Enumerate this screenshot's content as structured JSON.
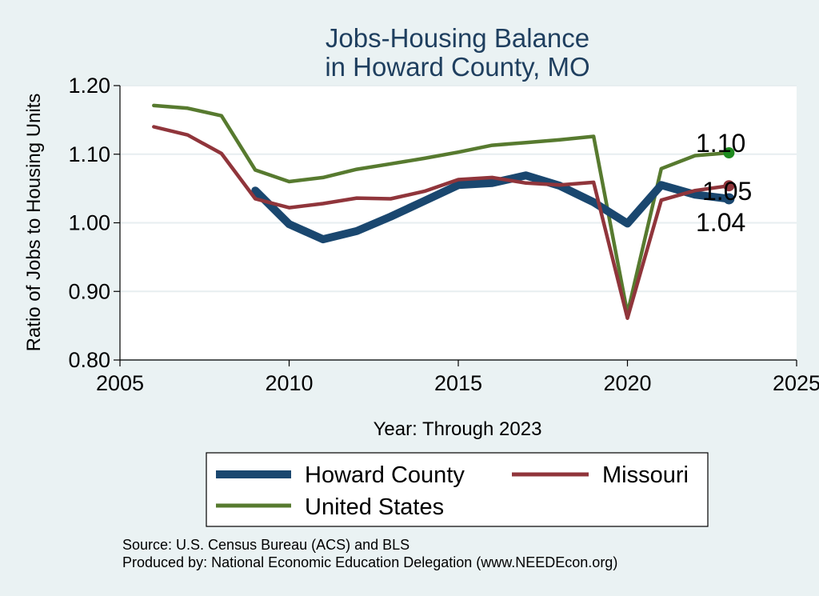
{
  "chart_data": {
    "type": "line",
    "title": [
      "Jobs-Housing Balance",
      "in Howard County, MO"
    ],
    "xlabel": "Year: Through 2023",
    "ylabel": "Ratio of Jobs to Housing Units",
    "xlim": [
      2005,
      2025
    ],
    "ylim": [
      0.8,
      1.2
    ],
    "x_ticks": [
      2005,
      2010,
      2015,
      2020,
      2025
    ],
    "y_ticks": [
      0.8,
      0.9,
      1.0,
      1.1,
      1.2
    ],
    "y_tick_labels": [
      "0.80",
      "0.90",
      "1.00",
      "1.10",
      "1.20"
    ],
    "grid": true,
    "legend_position": "bottom",
    "series": [
      {
        "name": "United States",
        "color": "#577a2f",
        "x": [
          2006,
          2007,
          2008,
          2009,
          2010,
          2011,
          2012,
          2013,
          2014,
          2015,
          2016,
          2017,
          2018,
          2019,
          2020,
          2021,
          2022,
          2023
        ],
        "values": [
          1.171,
          1.167,
          1.156,
          1.077,
          1.06,
          1.066,
          1.078,
          1.086,
          1.094,
          1.103,
          1.113,
          1.117,
          1.121,
          1.126,
          0.868,
          1.079,
          1.098,
          1.102
        ],
        "end_label": "1.10"
      },
      {
        "name": "Howard County",
        "color": "#1a476f",
        "x": [
          2009,
          2010,
          2011,
          2012,
          2013,
          2014,
          2015,
          2016,
          2017,
          2018,
          2019,
          2020,
          2021,
          2022,
          2023
        ],
        "values": [
          1.047,
          0.998,
          0.976,
          0.988,
          1.009,
          1.032,
          1.055,
          1.058,
          1.069,
          1.054,
          1.03,
          0.999,
          1.055,
          1.041,
          1.035
        ],
        "end_label": "1.04"
      },
      {
        "name": "Missouri",
        "color": "#90353b",
        "x": [
          2006,
          2007,
          2008,
          2009,
          2010,
          2011,
          2012,
          2013,
          2014,
          2015,
          2016,
          2017,
          2018,
          2019,
          2020,
          2021,
          2022,
          2023
        ],
        "values": [
          1.14,
          1.128,
          1.101,
          1.035,
          1.022,
          1.028,
          1.036,
          1.035,
          1.046,
          1.063,
          1.066,
          1.058,
          1.055,
          1.059,
          0.861,
          1.033,
          1.047,
          1.054
        ],
        "end_label": "1.05"
      }
    ],
    "legend": [
      {
        "name": "Howard County",
        "color": "#1a476f"
      },
      {
        "name": "Missouri",
        "color": "#90353b"
      },
      {
        "name": "United States",
        "color": "#577a2f"
      }
    ]
  },
  "footer": {
    "source_line": "Source: U.S. Census Bureau (ACS) and BLS",
    "produced_line": "Produced by: National Economic Education Delegation (www.NEEDEcon.org)"
  }
}
